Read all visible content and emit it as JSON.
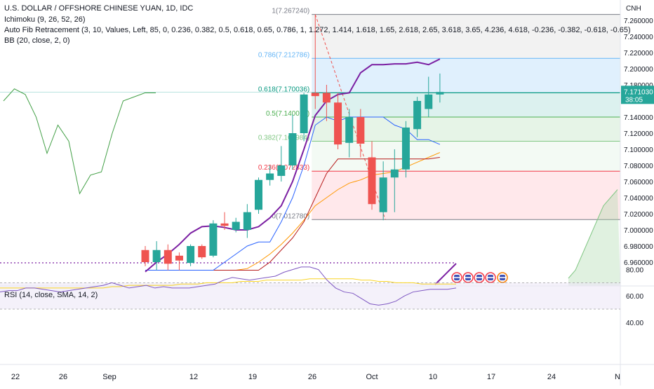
{
  "header": {
    "symbol_title": "U.S. DOLLAR / OFFSHORE CHINESE YUAN, 1D, IDC",
    "indicators": [
      "Ichimoku (9, 26, 52, 26)",
      "Auto Fib Retracement (3, 10, Values, Left, 85, 0, 0.236, 0.382, 0.5, 0.618, 0.65, 0.786, 1, 1.272, 1.414, 1.618, 1.65, 2.618, 2.65, 3.618, 3.65, 4.236, 4.618, -0.236, -0.382, -0.618, -0.65)",
      "BB (20, close, 2, 0)"
    ]
  },
  "colors": {
    "up": "#26a69a",
    "down": "#ef5350",
    "bb_basis": "#ff9800",
    "bb_upper": "#7b1fa2",
    "tenkan": "#2962ff",
    "kijun": "#b71c1c",
    "lagging": "#43a047",
    "rsi": "#7e57c2",
    "rsi_ma": "#f9d423",
    "fib_1": "#787b86",
    "fib_0786": "#64b5f6",
    "fib_0618": "#089981",
    "fib_05": "#4caf50",
    "fib_0382": "#81c784",
    "fib_0236": "#f23645",
    "fib_0": "#787b86",
    "price_badge": "#26a69a"
  },
  "chart_data": {
    "type": "candlestick",
    "currency_label": "CNH",
    "y_ticks": [
      "7.260000",
      "7.240000",
      "7.220000",
      "7.200000",
      "7.180000",
      "7.160000",
      "7.140000",
      "7.120000",
      "7.100000",
      "7.080000",
      "7.060000",
      "7.040000",
      "7.020000",
      "7.000000",
      "6.980000",
      "6.960000"
    ],
    "x_ticks": [
      "22",
      "26",
      "Sep",
      "12",
      "19",
      "26",
      "Oct",
      "10",
      "17",
      "24",
      "N"
    ],
    "last_price": "7.171030",
    "countdown": "38:05",
    "candles": [
      {
        "o": 6.975,
        "h": 6.98,
        "c": 6.96,
        "l": 6.955
      },
      {
        "o": 6.96,
        "h": 6.986,
        "c": 6.975,
        "l": 6.95
      },
      {
        "o": 6.975,
        "h": 6.982,
        "c": 6.958,
        "l": 6.95
      },
      {
        "o": 6.968,
        "h": 6.972,
        "c": 6.962,
        "l": 6.95
      },
      {
        "o": 6.959,
        "h": 6.982,
        "c": 6.98,
        "l": 6.955
      },
      {
        "o": 6.98,
        "h": 6.982,
        "c": 6.966,
        "l": 6.964
      },
      {
        "o": 6.968,
        "h": 7.012,
        "c": 7.008,
        "l": 6.966
      },
      {
        "o": 7.008,
        "h": 7.022,
        "c": 7.005,
        "l": 7.0
      },
      {
        "o": 7.0,
        "h": 7.015,
        "c": 7.01,
        "l": 6.997
      },
      {
        "o": 7.0,
        "h": 7.032,
        "c": 7.022,
        "l": 6.99
      },
      {
        "o": 7.025,
        "h": 7.065,
        "c": 7.062,
        "l": 7.02
      },
      {
        "o": 7.062,
        "h": 7.08,
        "c": 7.07,
        "l": 7.055
      },
      {
        "o": 7.067,
        "h": 7.104,
        "c": 7.08,
        "l": 7.06
      },
      {
        "o": 7.08,
        "h": 7.143,
        "c": 7.12,
        "l": 7.075
      },
      {
        "o": 7.12,
        "h": 7.17,
        "c": 7.168,
        "l": 7.11
      },
      {
        "o": 7.17,
        "h": 7.267,
        "c": 7.166,
        "l": 7.15
      },
      {
        "o": 7.17,
        "h": 7.18,
        "c": 7.158,
        "l": 7.135
      },
      {
        "o": 7.158,
        "h": 7.17,
        "c": 7.106,
        "l": 7.1
      },
      {
        "o": 7.108,
        "h": 7.15,
        "c": 7.14,
        "l": 7.09
      },
      {
        "o": 7.14,
        "h": 7.15,
        "c": 7.107,
        "l": 7.09
      },
      {
        "o": 7.09,
        "h": 7.11,
        "c": 7.032,
        "l": 7.025
      },
      {
        "o": 7.022,
        "h": 7.085,
        "c": 7.065,
        "l": 7.012
      },
      {
        "o": 7.065,
        "h": 7.1,
        "c": 7.075,
        "l": 7.022
      },
      {
        "o": 7.075,
        "h": 7.135,
        "c": 7.127,
        "l": 7.065
      },
      {
        "o": 7.125,
        "h": 7.165,
        "c": 7.16,
        "l": 7.115
      },
      {
        "o": 7.15,
        "h": 7.19,
        "c": 7.168,
        "l": 7.14
      },
      {
        "o": 7.168,
        "h": 7.194,
        "c": 7.171,
        "l": 7.158
      }
    ],
    "fib_levels": [
      {
        "ratio": "1",
        "value": 7.26724,
        "label": "1(7.267240)"
      },
      {
        "ratio": "0.786",
        "value": 7.212786,
        "label": "0.786(7.212786)"
      },
      {
        "ratio": "0.618",
        "value": 7.170036,
        "label": "0.618(7.170036)"
      },
      {
        "ratio": "0.5",
        "value": 7.14001,
        "label": "0.5(7.140010)"
      },
      {
        "ratio": "0.382",
        "value": 7.109984,
        "label": "0.382(7.109984)"
      },
      {
        "ratio": "0.236",
        "value": 7.072833,
        "label": "0.236(7.072833)"
      },
      {
        "ratio": "0",
        "value": 7.01278,
        "label": "0(7.012780)"
      }
    ],
    "bb_upper": [
      6.948,
      6.96,
      6.97,
      6.982,
      6.996,
      7.004,
      7.005,
      7.003,
      7.0,
      7.0,
      7.004,
      7.015,
      7.03,
      7.06,
      7.1,
      7.142,
      7.16,
      7.168,
      7.17,
      7.195,
      7.205,
      7.205,
      7.206,
      7.206,
      7.208,
      7.205,
      7.212
    ],
    "bb_basis": [
      6.95,
      6.95,
      6.95,
      6.95,
      6.95,
      6.95,
      6.95,
      6.95,
      6.95,
      6.952,
      6.96,
      6.97,
      6.982,
      6.996,
      7.012,
      7.03,
      7.04,
      7.05,
      7.058,
      7.062,
      7.068,
      7.07,
      7.072,
      7.078,
      7.084,
      7.09,
      7.096
    ],
    "tenkan": [
      6.95,
      6.95,
      6.95,
      6.95,
      6.95,
      6.95,
      6.95,
      6.96,
      6.97,
      6.98,
      6.985,
      6.985,
      7.01,
      7.04,
      7.08,
      7.13,
      7.14,
      7.135,
      7.14,
      7.14,
      7.14,
      7.14,
      7.13,
      7.125,
      7.112,
      7.112,
      7.106
    ],
    "kijun": [
      6.95,
      6.95,
      6.95,
      6.95,
      6.95,
      6.95,
      6.95,
      6.95,
      6.95,
      6.95,
      6.95,
      6.96,
      6.975,
      6.99,
      7.01,
      7.04,
      7.07,
      7.088,
      7.088,
      7.088,
      7.088,
      7.088,
      7.088,
      7.088,
      7.088,
      7.088,
      7.09
    ],
    "lagging": [
      7.16,
      7.175,
      7.168,
      7.14,
      7.095,
      7.13,
      7.11,
      7.045,
      7.068,
      7.072,
      7.12,
      7.16,
      7.165,
      7.17,
      7.17
    ],
    "rsi": {
      "y_ticks": [
        "80.00",
        "60.00",
        "40.00"
      ],
      "bands": [
        70,
        50
      ],
      "values": [
        63,
        64,
        64,
        66,
        66,
        65,
        64,
        63,
        64,
        65,
        66,
        67,
        68,
        70,
        68,
        66,
        67,
        68,
        66,
        67,
        66,
        66,
        66,
        67,
        68,
        69,
        72,
        74,
        73,
        72,
        73,
        74,
        75,
        78,
        80,
        82,
        82,
        80,
        72,
        66,
        63,
        62,
        58,
        54,
        53,
        54,
        56,
        60,
        63,
        64,
        65,
        65,
        65,
        66
      ],
      "ma": [
        66,
        66,
        66,
        66,
        66,
        66,
        66,
        66,
        66,
        66,
        66,
        66,
        66,
        67,
        67,
        68,
        68,
        68,
        68,
        68,
        68,
        69,
        69,
        69,
        70,
        70,
        70,
        70,
        71,
        71,
        71,
        72,
        72,
        72,
        72,
        72,
        73,
        73,
        73,
        73,
        73,
        73,
        72,
        72,
        71,
        71,
        70,
        70,
        70,
        69,
        69,
        69,
        69,
        69
      ]
    },
    "cloud_future": [
      6.94,
      6.95,
      6.97,
      6.99,
      7.01,
      7.03,
      7.04,
      7.05
    ]
  }
}
